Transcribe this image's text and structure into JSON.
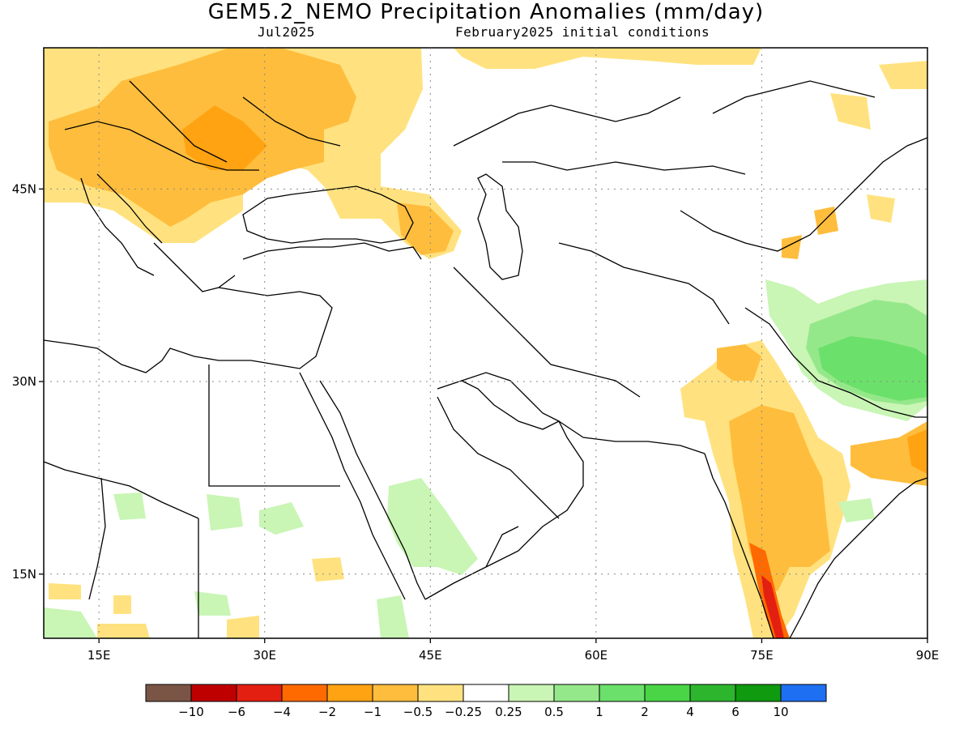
{
  "header": {
    "title": "GEM5.2_NEMO Precipitation Anomalies (mm/day)",
    "month": "Jul2025",
    "init": "February2025 initial conditions"
  },
  "map": {
    "lon_range": [
      10,
      90
    ],
    "lat_range": [
      10,
      56
    ],
    "lon_ticks": [
      {
        "lon": 15,
        "label": "15E"
      },
      {
        "lon": 30,
        "label": "30E"
      },
      {
        "lon": 45,
        "label": "45E"
      },
      {
        "lon": 60,
        "label": "60E"
      },
      {
        "lon": 75,
        "label": "75E"
      },
      {
        "lon": 90,
        "label": "90E"
      }
    ],
    "lat_ticks": [
      {
        "lat": 15,
        "label": "15N"
      },
      {
        "lat": 30,
        "label": "30N"
      },
      {
        "lat": 45,
        "label": "45N"
      }
    ],
    "gridlines": "dotted",
    "coastlines_and_borders": true
  },
  "legend": {
    "colors": [
      "#7a5546",
      "#bf0000",
      "#e31f12",
      "#ff6a00",
      "#ffa312",
      "#ffbd3d",
      "#ffe27f",
      "#ffffff",
      "#c9f5b5",
      "#95e88a",
      "#6be06a",
      "#49d546",
      "#2db62d",
      "#0f9a0f",
      "#1f6ff2"
    ],
    "labels": [
      "-10",
      "-6",
      "-4",
      "-2",
      "-1",
      "-0.5",
      "-0.25",
      "0.25",
      "0.5",
      "1",
      "2",
      "4",
      "6",
      "10"
    ]
  },
  "anomaly_regions": [
    {
      "region": "Central & Eastern Europe",
      "class": "-0.5 to -1"
    },
    {
      "region": "Balkans / Hungary / Ukraine",
      "class": "-1 to -2"
    },
    {
      "region": "Caucasus",
      "class": "-0.5 to -1"
    },
    {
      "region": "Western India",
      "class": "-0.5 to -2"
    },
    {
      "region": "Southwest India coast",
      "class": "-2 to -6"
    },
    {
      "region": "Himalaya / Nepal / Tibet",
      "class": "+0.5 to +2"
    },
    {
      "region": "Red Sea / Sudan",
      "class": "+0.25 to +0.5"
    }
  ]
}
